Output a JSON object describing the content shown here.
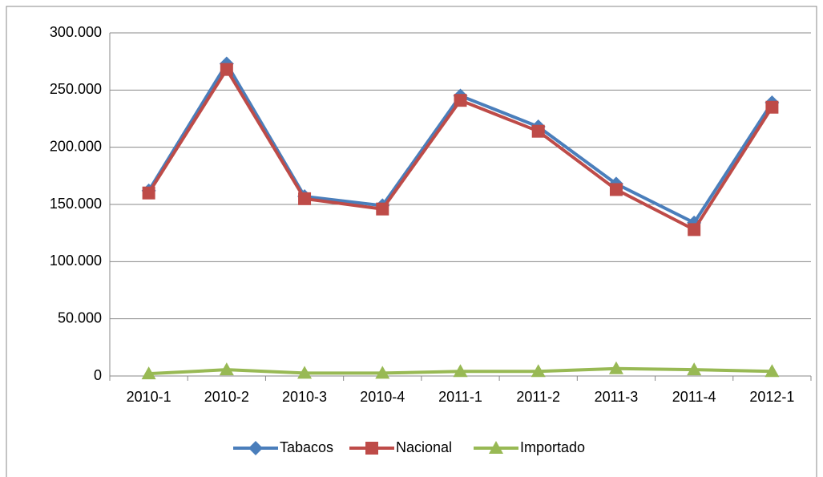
{
  "chart_data": {
    "type": "line",
    "categories": [
      "2010-1",
      "2010-2",
      "2010-3",
      "2010-4",
      "2011-1",
      "2011-2",
      "2011-3",
      "2011-4",
      "2012-1"
    ],
    "series": [
      {
        "name": "Tabacos",
        "color": "#4a7ebb",
        "marker": "diamond",
        "values": [
          162000,
          273000,
          157000,
          149000,
          245000,
          218000,
          168000,
          134000,
          239000
        ]
      },
      {
        "name": "Nacional",
        "color": "#be4b48",
        "marker": "square",
        "values": [
          160000,
          268000,
          155000,
          146000,
          241000,
          214000,
          163000,
          128000,
          235000
        ]
      },
      {
        "name": "Importado",
        "color": "#98b954",
        "marker": "triangle",
        "values": [
          2000,
          5500,
          2500,
          2500,
          4000,
          4000,
          6500,
          5500,
          4000
        ]
      }
    ],
    "ylim": [
      0,
      300000
    ],
    "yticks": [
      0,
      {
        "value": 50000,
        "label": "50.000"
      },
      {
        "value": 100000,
        "label": "100.000"
      },
      {
        "value": 150000,
        "label": "150.000"
      },
      {
        "value": 200000,
        "label": "200.000"
      },
      {
        "value": 250000,
        "label": "250.000"
      },
      {
        "value": 300000,
        "label": "300.000"
      }
    ],
    "grid": true,
    "legend": "bottom"
  }
}
